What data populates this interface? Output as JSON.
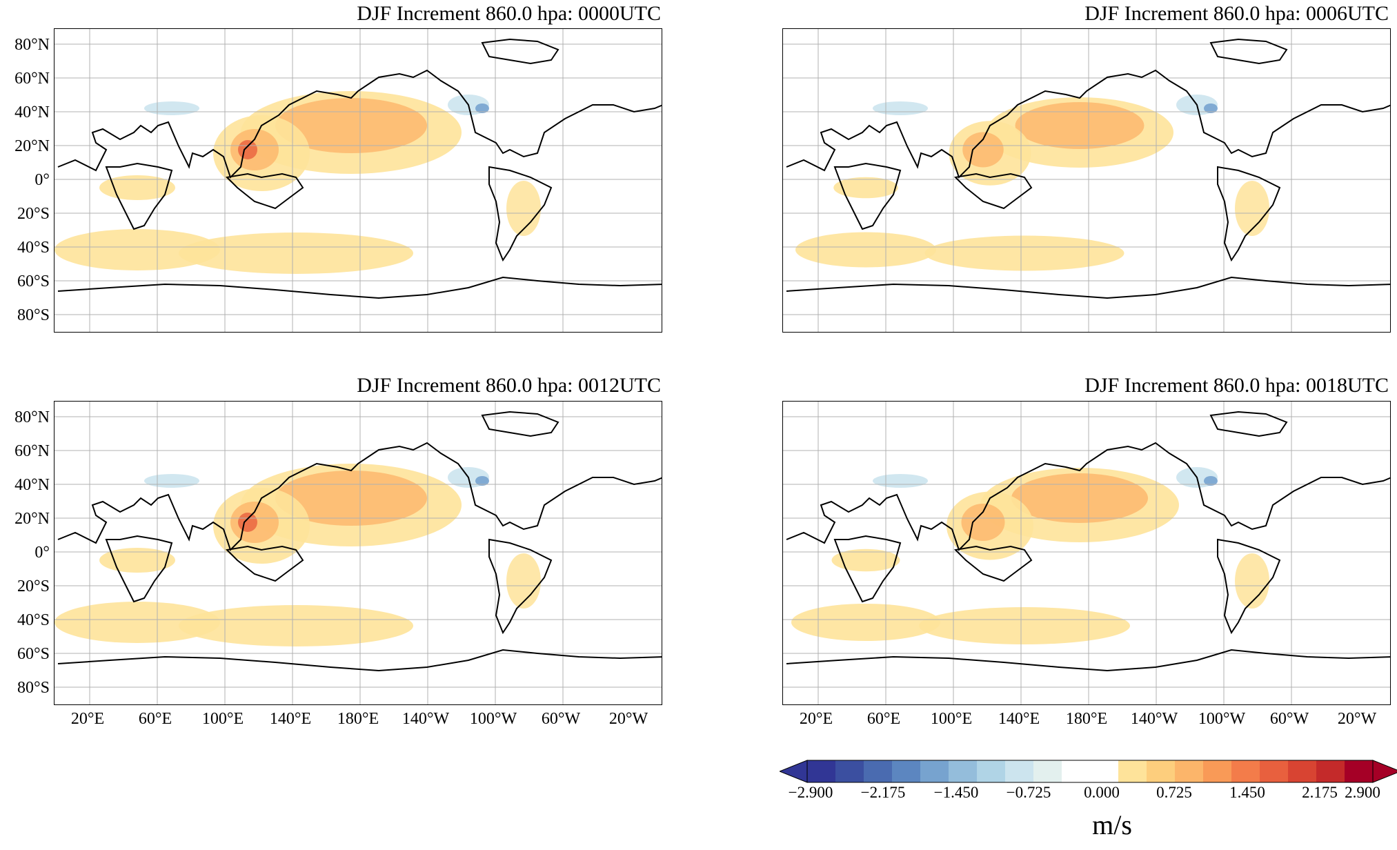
{
  "panels": [
    {
      "title": "DJF Increment 860.0 hpa:  0000UTC",
      "shows_lon_labels": false,
      "shows_lat_labels": true
    },
    {
      "title": "DJF Increment 860.0 hpa:  0006UTC",
      "shows_lon_labels": false,
      "shows_lat_labels": false
    },
    {
      "title": "DJF Increment 860.0 hpa:  0012UTC",
      "shows_lon_labels": true,
      "shows_lat_labels": true
    },
    {
      "title": "DJF Increment 860.0 hpa:  0018UTC",
      "shows_lon_labels": true,
      "shows_lat_labels": false
    }
  ],
  "lat_labels": [
    "80°N",
    "60°N",
    "40°N",
    "20°N",
    "0°",
    "20°S",
    "40°S",
    "60°S",
    "80°S"
  ],
  "lon_labels": [
    "20°E",
    "60°E",
    "100°E",
    "140°E",
    "180°E",
    "140°W",
    "100°W",
    "60°W",
    "20°W"
  ],
  "colorbar": {
    "ticks": [
      "−2.900",
      "−2.175",
      "−1.450",
      "−0.725",
      "0.000",
      "0.725",
      "1.450",
      "2.175",
      "2.900"
    ],
    "unit": "m/s",
    "colors": [
      "#313695",
      "#3b4fa0",
      "#4a6bb0",
      "#5c86c0",
      "#77a3cf",
      "#94bddb",
      "#b0d4e6",
      "#cce4ee",
      "#e3f0ee",
      "#ffffff",
      "#ffffff",
      "#fee39a",
      "#fdce7d",
      "#fcb56a",
      "#f99a57",
      "#f37c4a",
      "#e8603e",
      "#d84432",
      "#c42a2a",
      "#a50026"
    ]
  },
  "colors": {
    "positive_weak": "#fee39a",
    "positive_mid": "#fcb56a",
    "positive_strong": "#e8603e",
    "negative_weak": "#cce4ee",
    "negative_mid": "#77a3cf"
  }
}
